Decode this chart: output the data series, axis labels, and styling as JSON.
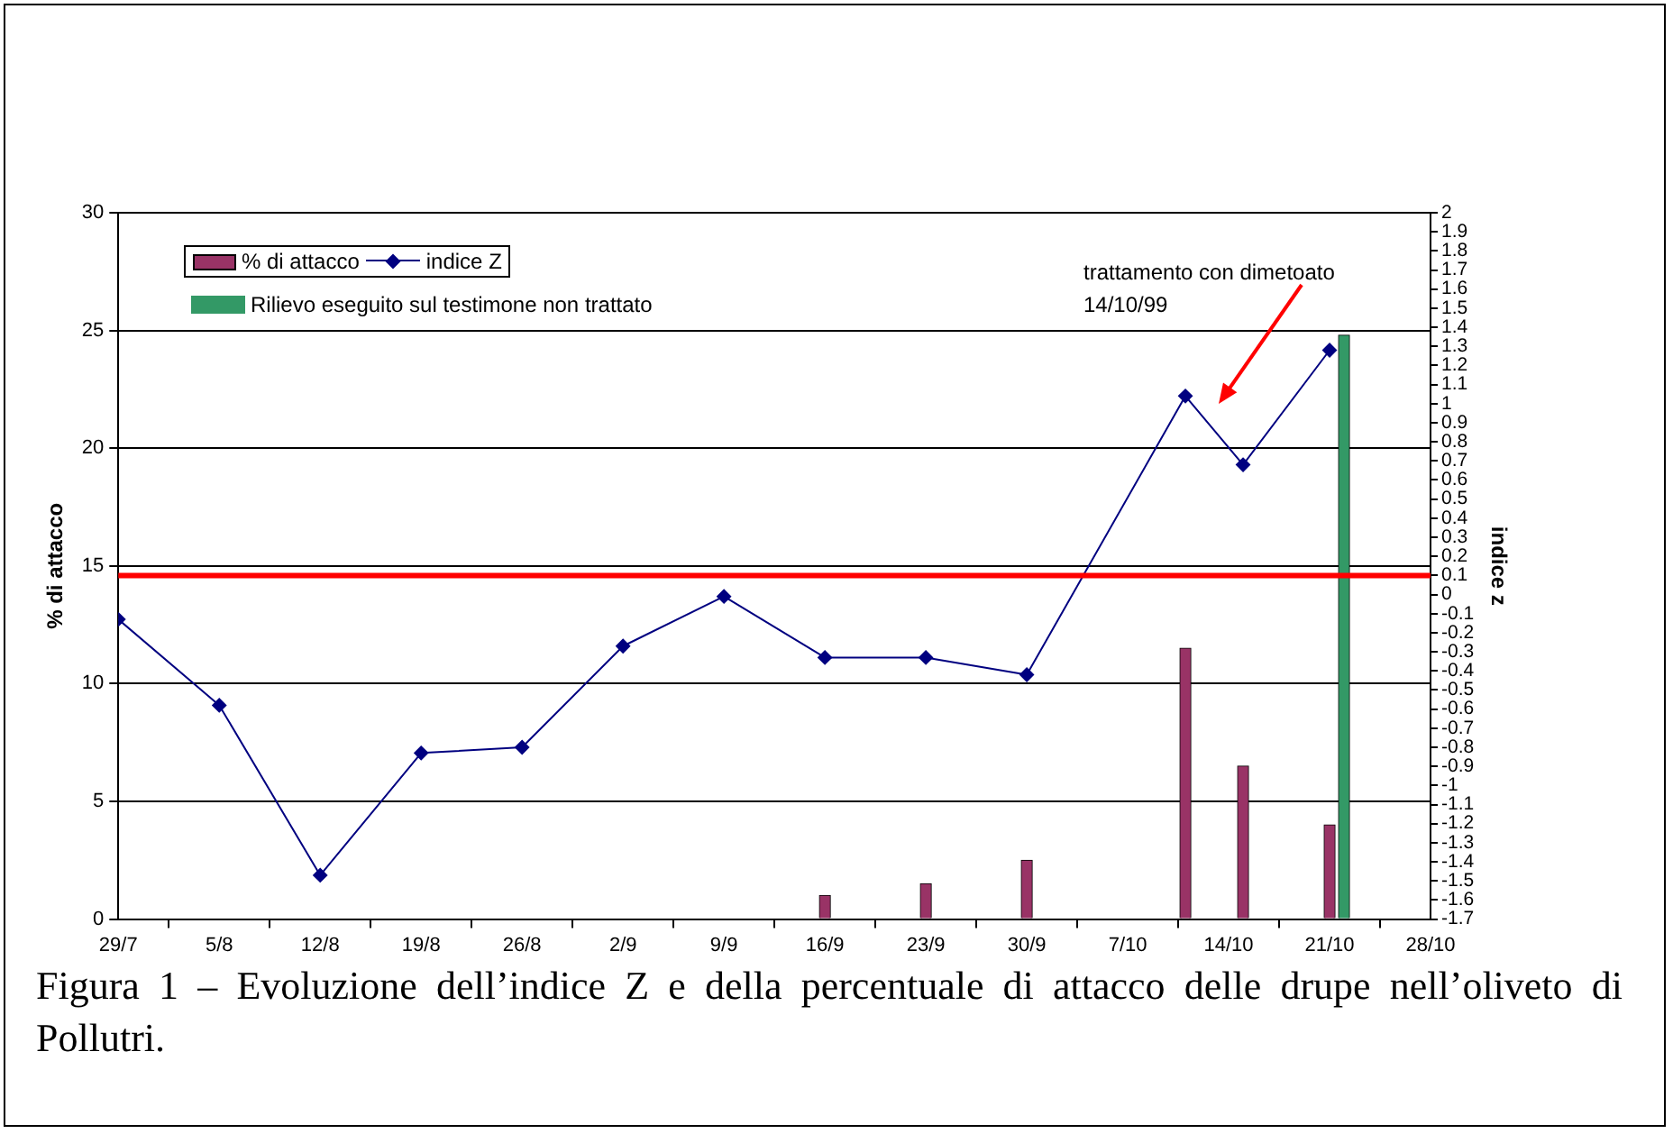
{
  "chart_data": {
    "type": "bar",
    "annotations": [
      "trattamento con dimetoato\n14/10/99",
      "Figura 1 – Evoluzione dell’indice Z e della percentuale di attacco delle drupe nell’oliveto di Pollutri."
    ],
    "ylabel": "% di attacco",
    "y2label": "indice z",
    "xlim": [
      "--07-29",
      "--10-28"
    ],
    "xticks": [
      {
        "value": "--07-29",
        "label": "29/7"
      },
      {
        "value": "--08-05",
        "label": "5/8"
      },
      {
        "value": "--08-12",
        "label": "12/8"
      },
      {
        "value": "--08-19",
        "label": "19/8"
      },
      {
        "value": "--08-26",
        "label": "26/8"
      },
      {
        "value": "--09-02",
        "label": "2/9"
      },
      {
        "value": "--09-09",
        "label": "9/9"
      },
      {
        "value": "--09-16",
        "label": "16/9"
      },
      {
        "value": "--09-23",
        "label": "23/9"
      },
      {
        "value": "--09-30",
        "label": "30/9"
      },
      {
        "value": "--10-07",
        "label": "7/10"
      },
      {
        "value": "--10-14",
        "label": "14/10"
      },
      {
        "value": "--10-21",
        "label": "21/10"
      },
      {
        "value": "--10-28",
        "label": "28/10"
      }
    ],
    "ylim": [
      0,
      30
    ],
    "yticks": [
      0,
      5,
      10,
      15,
      20,
      25,
      30
    ],
    "y2lim": [
      -1.7,
      2
    ],
    "y2ticks": [
      -1.7,
      -1.6,
      -1.5,
      -1.4,
      -1.3,
      -1.2,
      -1.1,
      -1,
      -0.9,
      -0.8,
      -0.7,
      -0.6,
      -0.5,
      -0.4,
      -0.3,
      -0.2,
      -0.1,
      0,
      0.1,
      0.2,
      0.3,
      0.4,
      0.5,
      0.6,
      0.7,
      0.8,
      0.9,
      1,
      1.1,
      1.2,
      1.3,
      1.4,
      1.5,
      1.6,
      1.7,
      1.8,
      1.9,
      2
    ],
    "series": [
      {
        "name": "% di attacco",
        "color": "#993366",
        "x": [
          "--09-16",
          "--09-23",
          "--09-30",
          "--10-11",
          "--10-15",
          "--10-21"
        ],
        "values": [
          1,
          1.5,
          2.5,
          11.5,
          6.5,
          4
        ]
      },
      {
        "name": "indice Z",
        "type": "line",
        "axis": "y2",
        "color": "#000080",
        "x": [
          "--07-29",
          "--08-05",
          "--08-12",
          "--08-19",
          "--08-26",
          "--09-02",
          "--09-09",
          "--09-16",
          "--09-23",
          "--09-30",
          "--10-11",
          "--10-15",
          "--10-21"
        ],
        "values": [
          -0.13,
          -0.58,
          -1.47,
          -0.83,
          -0.8,
          -0.27,
          -0.01,
          -0.33,
          -0.33,
          -0.42,
          1.04,
          0.68,
          1.28
        ]
      },
      {
        "name": "Rilievo eseguito sul testimone non trattato",
        "color": "#339966",
        "x": [
          "--10-22"
        ],
        "values": [
          24.8
        ]
      }
    ],
    "ref_lines": [
      {
        "axis": "y2",
        "value": 0.1,
        "color": "#ff0000"
      }
    ],
    "grid": "y",
    "legend": "top left",
    "marker": "diamond"
  }
}
